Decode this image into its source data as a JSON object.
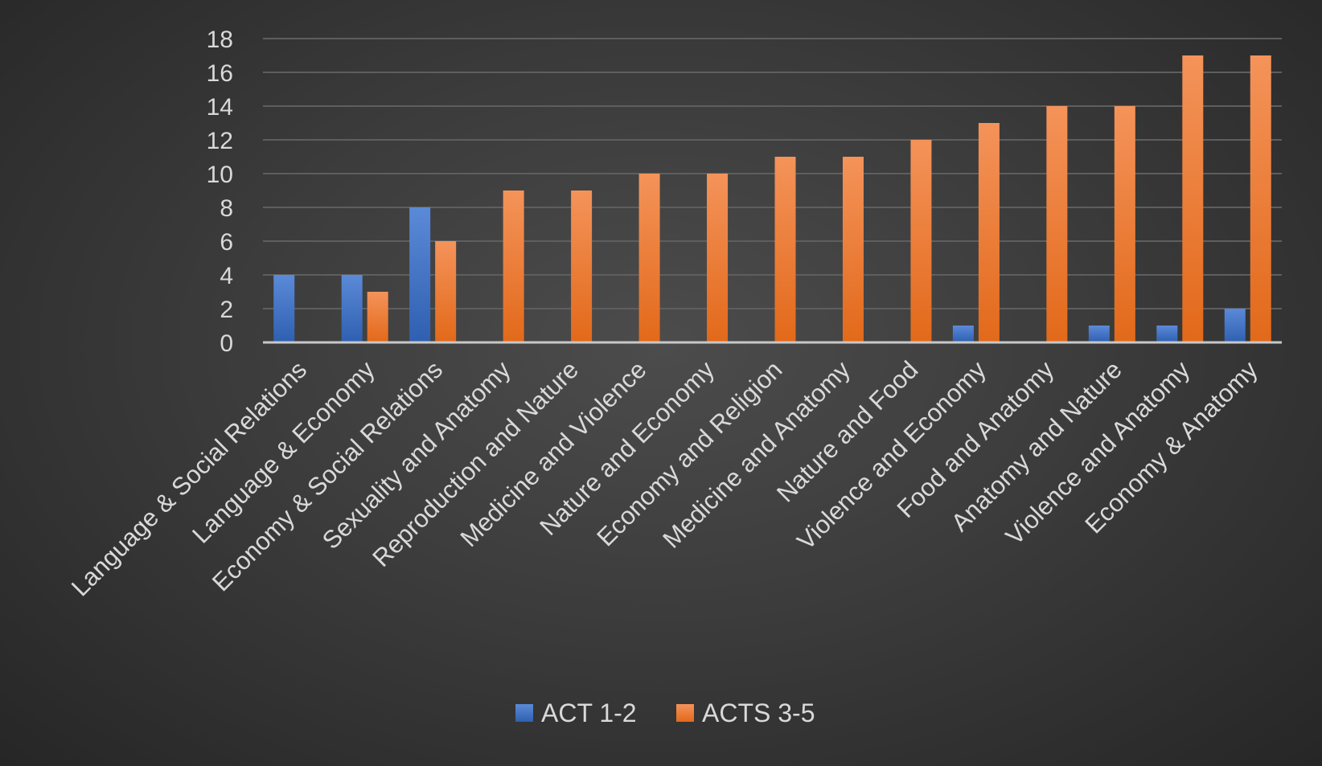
{
  "chart_data": {
    "type": "bar",
    "title": "",
    "xlabel": "",
    "ylabel": "",
    "ylim": [
      0,
      18
    ],
    "yticks": [
      0,
      2,
      4,
      6,
      8,
      10,
      12,
      14,
      16,
      18
    ],
    "grid": true,
    "legend_position": "bottom",
    "categories": [
      "Language & Social Relations",
      "Language & Economy",
      "Economy & Social Relations",
      "Sexuality and Anatomy",
      "Reproduction and Nature",
      "Medicine and Violence",
      "Nature and Economy",
      "Economy and Religion",
      "Medicine and Anatomy",
      "Nature and Food",
      "Violence and Economy",
      "Food and Anatomy",
      "Anatomy and Nature",
      "Violence and Anatomy",
      "Economy & Anatomy"
    ],
    "series": [
      {
        "name": "ACT 1-2",
        "color": "#4472c4",
        "values": [
          4,
          4,
          8,
          0,
          0,
          0,
          0,
          0,
          0,
          0,
          1,
          0,
          1,
          1,
          2
        ]
      },
      {
        "name": "ACTS 3-5",
        "color": "#ed7d31",
        "values": [
          0,
          3,
          6,
          9,
          9,
          10,
          10,
          11,
          11,
          12,
          13,
          14,
          14,
          17,
          17
        ]
      }
    ]
  }
}
